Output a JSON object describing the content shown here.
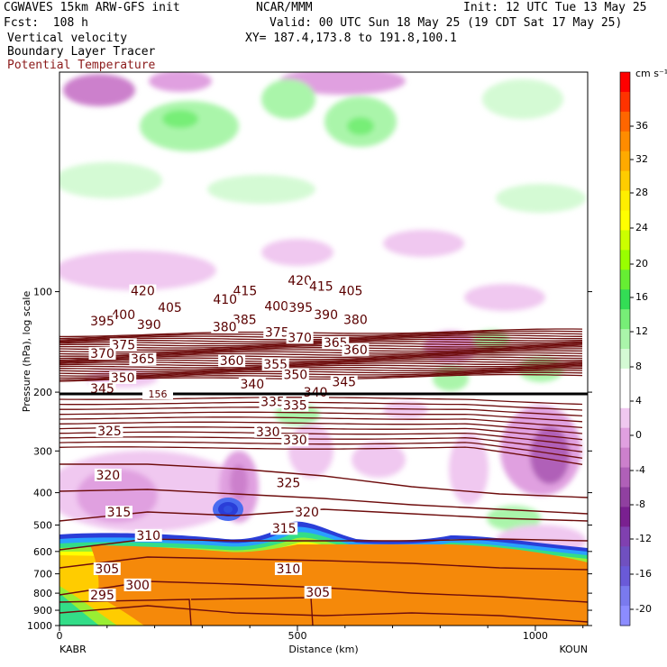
{
  "header": {
    "line1_left": "CGWAVES 15km ARW-GFS init",
    "line1_mid": "NCAR/MMM",
    "line1_right": "Init: 12 UTC Tue 13 May 25",
    "line2_left": "Fcst:  108 h",
    "line2_right": "Valid: 00 UTC Sun 18 May 25 (19 CDT Sat 17 May 25)",
    "line3_left": "Vertical velocity",
    "line3_right": "XY= 187.4,173.8 to 191.8,100.1",
    "line4_left": "Boundary Layer Tracer",
    "line5_left": "Potential Temperature"
  },
  "colors": {
    "theta_contour": "#6e0d0d",
    "terrain_orange": "#f5890a",
    "accent_red": "#8b1a1a"
  },
  "chart_data": {
    "type": "cross-section",
    "xlabel": "Distance (km)",
    "ylabel": "Pressure (hPa), log scale",
    "x_ticks": [
      "0",
      "500",
      "1000"
    ],
    "x_start_label": "KABR",
    "x_end_label": "KOUN",
    "xlim": [
      0,
      1110
    ],
    "y_ticks": [
      "100",
      "200",
      "300",
      "400",
      "500",
      "600",
      "700",
      "800",
      "900",
      "1000"
    ],
    "ylim": [
      1000,
      22
    ],
    "colorbar": {
      "unit": "cm s⁻¹",
      "labels": [
        "36",
        "32",
        "28",
        "24",
        "20",
        "16",
        "12",
        "8",
        "4",
        "0",
        "-4",
        "-8",
        "-12",
        "-16",
        "-20"
      ],
      "colors": [
        "#ff0000",
        "#ff3300",
        "#ff6600",
        "#ff8c00",
        "#ffaa00",
        "#ffcc00",
        "#ffee00",
        "#ffff00",
        "#ccff00",
        "#99ff00",
        "#66ee33",
        "#33dd55",
        "#77ee77",
        "#aaf5aa",
        "#d4fad4",
        "#ffffff",
        "#ffffff",
        "#f0c8f0",
        "#e0a0e0",
        "#cc80cc",
        "#b060b8",
        "#9040a0",
        "#7a2090",
        "#8040b0",
        "#7050c0",
        "#6a5ad8",
        "#7a7aee",
        "#8c8cff"
      ]
    },
    "theta_labels": [
      {
        "v": "420",
        "x": 175,
        "p": 100
      },
      {
        "v": "415",
        "x": 390,
        "p": 100
      },
      {
        "v": "420",
        "x": 505,
        "p": 93
      },
      {
        "v": "415",
        "x": 550,
        "p": 97
      },
      {
        "v": "405",
        "x": 612,
        "p": 100
      },
      {
        "v": "410",
        "x": 348,
        "p": 106
      },
      {
        "v": "405",
        "x": 232,
        "p": 112
      },
      {
        "v": "400",
        "x": 134,
        "p": 118
      },
      {
        "v": "400",
        "x": 456,
        "p": 111
      },
      {
        "v": "395",
        "x": 507,
        "p": 112
      },
      {
        "v": "390",
        "x": 560,
        "p": 118
      },
      {
        "v": "380",
        "x": 622,
        "p": 122
      },
      {
        "v": "395",
        "x": 90,
        "p": 123
      },
      {
        "v": "390",
        "x": 188,
        "p": 126
      },
      {
        "v": "385",
        "x": 389,
        "p": 122
      },
      {
        "v": "380",
        "x": 347,
        "p": 128
      },
      {
        "v": "375",
        "x": 457,
        "p": 133
      },
      {
        "v": "370",
        "x": 505,
        "p": 138
      },
      {
        "v": "375",
        "x": 134,
        "p": 145
      },
      {
        "v": "370",
        "x": 90,
        "p": 154
      },
      {
        "v": "365",
        "x": 175,
        "p": 160
      },
      {
        "v": "360",
        "x": 362,
        "p": 162
      },
      {
        "v": "365",
        "x": 580,
        "p": 143
      },
      {
        "v": "360",
        "x": 622,
        "p": 150
      },
      {
        "v": "355",
        "x": 454,
        "p": 166
      },
      {
        "v": "350",
        "x": 133,
        "p": 182
      },
      {
        "v": "350",
        "x": 496,
        "p": 178
      },
      {
        "v": "345",
        "x": 90,
        "p": 196
      },
      {
        "v": "340",
        "x": 405,
        "p": 190
      },
      {
        "v": "345",
        "x": 598,
        "p": 187
      },
      {
        "v": "340",
        "x": 538,
        "p": 201
      },
      {
        "v": "335",
        "x": 448,
        "p": 215
      },
      {
        "v": "335",
        "x": 495,
        "p": 220
      },
      {
        "v": "330",
        "x": 438,
        "p": 264
      },
      {
        "v": "330",
        "x": 495,
        "p": 280
      },
      {
        "v": "325",
        "x": 105,
        "p": 263
      },
      {
        "v": "325",
        "x": 481,
        "p": 376
      },
      {
        "v": "320",
        "x": 102,
        "p": 356
      },
      {
        "v": "320",
        "x": 520,
        "p": 460
      },
      {
        "v": "315",
        "x": 125,
        "p": 460
      },
      {
        "v": "315",
        "x": 472,
        "p": 515
      },
      {
        "v": "310",
        "x": 187,
        "p": 540
      },
      {
        "v": "310",
        "x": 481,
        "p": 680
      },
      {
        "v": "305",
        "x": 100,
        "p": 680
      },
      {
        "v": "305",
        "x": 543,
        "p": 800
      },
      {
        "v": "300",
        "x": 164,
        "p": 760
      },
      {
        "v": "295",
        "x": 90,
        "p": 815
      }
    ],
    "theta_levels": [
      "295",
      "300",
      "305",
      "310",
      "315",
      "320",
      "325",
      "330",
      "335",
      "340",
      "345",
      "350",
      "355",
      "360",
      "365",
      "370",
      "375",
      "380",
      "385",
      "390",
      "395",
      "400",
      "405",
      "410",
      "415",
      "420"
    ],
    "tropopause_label": "156"
  }
}
